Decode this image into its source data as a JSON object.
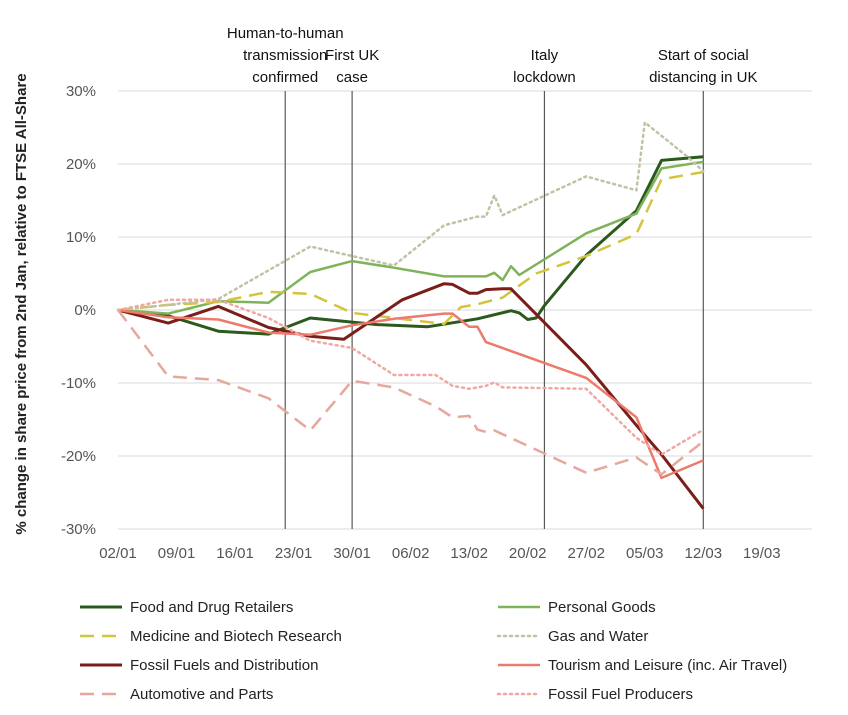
{
  "chart_data": {
    "type": "line",
    "title": "",
    "ylabel": "% change in share price from 2nd Jan, relative to FTSE All-Share",
    "xlabel": "",
    "ylim": [
      -30,
      30
    ],
    "yticks": [
      -30,
      -20,
      -10,
      0,
      10,
      20,
      30
    ],
    "ytick_labels": [
      "-30%",
      "-20%",
      "-10%",
      "0%",
      "10%",
      "20%",
      "30%"
    ],
    "x_ticks": [
      0,
      7,
      14,
      21,
      28,
      35,
      42,
      49,
      56,
      63,
      70,
      77
    ],
    "x_tick_labels": [
      "02/01",
      "09/01",
      "16/01",
      "23/01",
      "30/01",
      "06/02",
      "13/02",
      "20/02",
      "27/02",
      "05/03",
      "12/03",
      "19/03"
    ],
    "xlim": [
      0,
      83
    ],
    "grid": "horizontal",
    "legend_position": "bottom",
    "events": [
      {
        "x": 20,
        "label_lines": [
          "Human-to-human",
          "transmission",
          "confirmed"
        ]
      },
      {
        "x": 28,
        "label_lines": [
          "First UK",
          "case"
        ]
      },
      {
        "x": 51,
        "label_lines": [
          "Italy",
          "lockdown"
        ]
      },
      {
        "x": 70,
        "label_lines": [
          "Start of social",
          "distancing in UK"
        ]
      }
    ],
    "series": [
      {
        "name": "Food and Drug Retailers",
        "color": "#2b5a1c",
        "dash": "solid",
        "width": 3,
        "points": [
          [
            0,
            0
          ],
          [
            6,
            -0.8
          ],
          [
            12,
            -2.9
          ],
          [
            18,
            -3.3
          ],
          [
            23,
            -1.1
          ],
          [
            31,
            -2.0
          ],
          [
            37,
            -2.3
          ],
          [
            43,
            -1.2
          ],
          [
            47,
            -0.1
          ],
          [
            48,
            -0.4
          ],
          [
            49,
            -1.3
          ],
          [
            50,
            -1.1
          ],
          [
            51,
            0.6
          ],
          [
            56,
            7.5
          ],
          [
            62,
            13.6
          ],
          [
            65,
            20.5
          ],
          [
            70,
            21.0
          ]
        ]
      },
      {
        "name": "Personal Goods",
        "color": "#7fb35a",
        "dash": "solid",
        "width": 2.5,
        "points": [
          [
            0,
            0
          ],
          [
            6,
            -0.5
          ],
          [
            12,
            1.2
          ],
          [
            18,
            1.0
          ],
          [
            23,
            5.2
          ],
          [
            28,
            6.7
          ],
          [
            33,
            5.8
          ],
          [
            39,
            4.6
          ],
          [
            44,
            4.6
          ],
          [
            45,
            5.1
          ],
          [
            46,
            4.1
          ],
          [
            47,
            6.0
          ],
          [
            48,
            4.8
          ],
          [
            56,
            10.5
          ],
          [
            62,
            13.2
          ],
          [
            65,
            19.4
          ],
          [
            70,
            20.3
          ]
        ]
      },
      {
        "name": "Medicine and Biotech Research",
        "color": "#d2c43c",
        "dash": "long",
        "width": 2.5,
        "points": [
          [
            0,
            0
          ],
          [
            6,
            0.7
          ],
          [
            12,
            1.1
          ],
          [
            18,
            2.5
          ],
          [
            23,
            2.2
          ],
          [
            28,
            -0.4
          ],
          [
            33,
            -1.1
          ],
          [
            39,
            -1.9
          ],
          [
            41,
            0.4
          ],
          [
            43,
            0.8
          ],
          [
            46,
            1.7
          ],
          [
            50,
            5.0
          ],
          [
            56,
            7.4
          ],
          [
            62,
            10.4
          ],
          [
            65,
            17.9
          ],
          [
            70,
            18.9
          ]
        ]
      },
      {
        "name": "Gas and Water",
        "color": "#bfc3a4",
        "dash": "dot",
        "width": 2.5,
        "points": [
          [
            0,
            0
          ],
          [
            6,
            0.7
          ],
          [
            12,
            1.5
          ],
          [
            23,
            8.7
          ],
          [
            33,
            6.1
          ],
          [
            39,
            11.6
          ],
          [
            43,
            12.8
          ],
          [
            44,
            12.8
          ],
          [
            45,
            15.7
          ],
          [
            46,
            13.0
          ],
          [
            56,
            18.3
          ],
          [
            62,
            16.4
          ],
          [
            63,
            25.7
          ],
          [
            68,
            21.1
          ],
          [
            70,
            19.0
          ]
        ]
      },
      {
        "name": "Fossil Fuels and Distribution",
        "color": "#7a1e1a",
        "dash": "solid",
        "width": 3,
        "points": [
          [
            0,
            0
          ],
          [
            6,
            -1.8
          ],
          [
            12,
            0.5
          ],
          [
            18,
            -2.4
          ],
          [
            23,
            -3.6
          ],
          [
            27,
            -4.0
          ],
          [
            34,
            1.4
          ],
          [
            39,
            3.6
          ],
          [
            40,
            3.5
          ],
          [
            42,
            2.3
          ],
          [
            43,
            2.3
          ],
          [
            44,
            2.8
          ],
          [
            46,
            2.9
          ],
          [
            47,
            2.9
          ],
          [
            56,
            -7.5
          ],
          [
            62,
            -15.8
          ],
          [
            65,
            -19.8
          ],
          [
            70,
            -27.2
          ]
        ]
      },
      {
        "name": "Tourism and Leisure (inc. Air Travel)",
        "color": "#ec7a6d",
        "dash": "solid",
        "width": 2.5,
        "points": [
          [
            0,
            0
          ],
          [
            6,
            -1.0
          ],
          [
            12,
            -1.3
          ],
          [
            18,
            -3.1
          ],
          [
            23,
            -3.4
          ],
          [
            28,
            -2.1
          ],
          [
            33,
            -1.2
          ],
          [
            39,
            -0.5
          ],
          [
            40,
            -0.5
          ],
          [
            42,
            -2.3
          ],
          [
            43,
            -2.3
          ],
          [
            44,
            -4.4
          ],
          [
            56,
            -9.3
          ],
          [
            62,
            -14.7
          ],
          [
            65,
            -23.0
          ],
          [
            70,
            -20.6
          ]
        ]
      },
      {
        "name": "Automotive and Parts",
        "color": "#e6a79c",
        "dash": "long",
        "width": 2.5,
        "points": [
          [
            0,
            0
          ],
          [
            6,
            -9.1
          ],
          [
            12,
            -9.6
          ],
          [
            18,
            -12.1
          ],
          [
            23,
            -16.5
          ],
          [
            28,
            -9.7
          ],
          [
            33,
            -10.6
          ],
          [
            38,
            -13.2
          ],
          [
            40,
            -14.7
          ],
          [
            42,
            -14.5
          ],
          [
            43,
            -16.4
          ],
          [
            44,
            -16.7
          ],
          [
            45,
            -16.5
          ],
          [
            56,
            -22.3
          ],
          [
            62,
            -20.2
          ],
          [
            65,
            -22.5
          ],
          [
            70,
            -18.0
          ]
        ]
      },
      {
        "name": "Fossil Fuel Producers",
        "color": "#f0a8a0",
        "dash": "dot",
        "width": 2.5,
        "points": [
          [
            0,
            0
          ],
          [
            6,
            1.4
          ],
          [
            12,
            1.4
          ],
          [
            18,
            -1.1
          ],
          [
            23,
            -4.2
          ],
          [
            28,
            -5.2
          ],
          [
            33,
            -8.9
          ],
          [
            38,
            -8.9
          ],
          [
            40,
            -10.4
          ],
          [
            42,
            -10.8
          ],
          [
            44,
            -10.4
          ],
          [
            45,
            -9.9
          ],
          [
            46,
            -10.6
          ],
          [
            56,
            -10.8
          ],
          [
            62,
            -17.5
          ],
          [
            65,
            -19.8
          ],
          [
            70,
            -16.4
          ]
        ]
      }
    ]
  }
}
